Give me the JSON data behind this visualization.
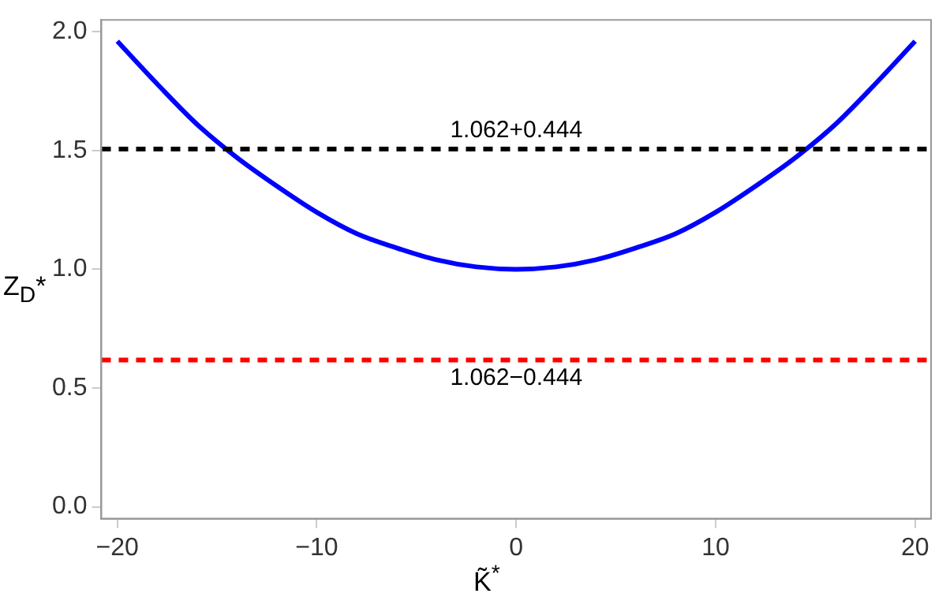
{
  "chart_data": {
    "type": "line",
    "xlabel": "K̃$^{*}$",
    "ylabel": "Z$_{D}$*",
    "x": [
      -20,
      -18,
      -16,
      -14,
      -12,
      -10,
      -8,
      -6,
      -4,
      -2,
      0,
      2,
      4,
      6,
      8,
      10,
      12,
      14,
      16,
      18,
      20
    ],
    "series": [
      {
        "color": "#0000ff",
        "values": [
          1.96,
          1.78,
          1.61,
          1.47,
          1.35,
          1.24,
          1.15,
          1.09,
          1.04,
          1.01,
          1.0,
          1.01,
          1.04,
          1.09,
          1.15,
          1.24,
          1.35,
          1.47,
          1.61,
          1.78,
          1.96
        ]
      }
    ],
    "xlim": [
      -20.8,
      20.8
    ],
    "xticks": [
      -20,
      -10,
      0,
      10,
      20
    ],
    "ylim": [
      -0.05,
      2.05
    ],
    "yticks": [
      {
        "value": 0,
        "label": "0.0"
      },
      {
        "value": 0.5,
        "label": "0.5"
      },
      {
        "value": 1,
        "label": "1.0"
      },
      {
        "value": 1.5,
        "label": "1.5"
      },
      {
        "value": 2,
        "label": "2.0"
      }
    ],
    "ref_lines": [
      {
        "axis": "y",
        "value": 1.506,
        "color": "#000000",
        "line_style": "dashed"
      },
      {
        "axis": "y",
        "value": 0.618,
        "color": "#ff0000",
        "line_style": "dashed"
      }
    ],
    "annotations": [
      {
        "text": "1.062+0.444",
        "x": 0,
        "y": 1.506
      },
      {
        "text": "1.062−0.444",
        "x": 0,
        "y": 0.618
      }
    ],
    "grid": false,
    "legend": false,
    "marker": "none",
    "line_style": "solid"
  }
}
